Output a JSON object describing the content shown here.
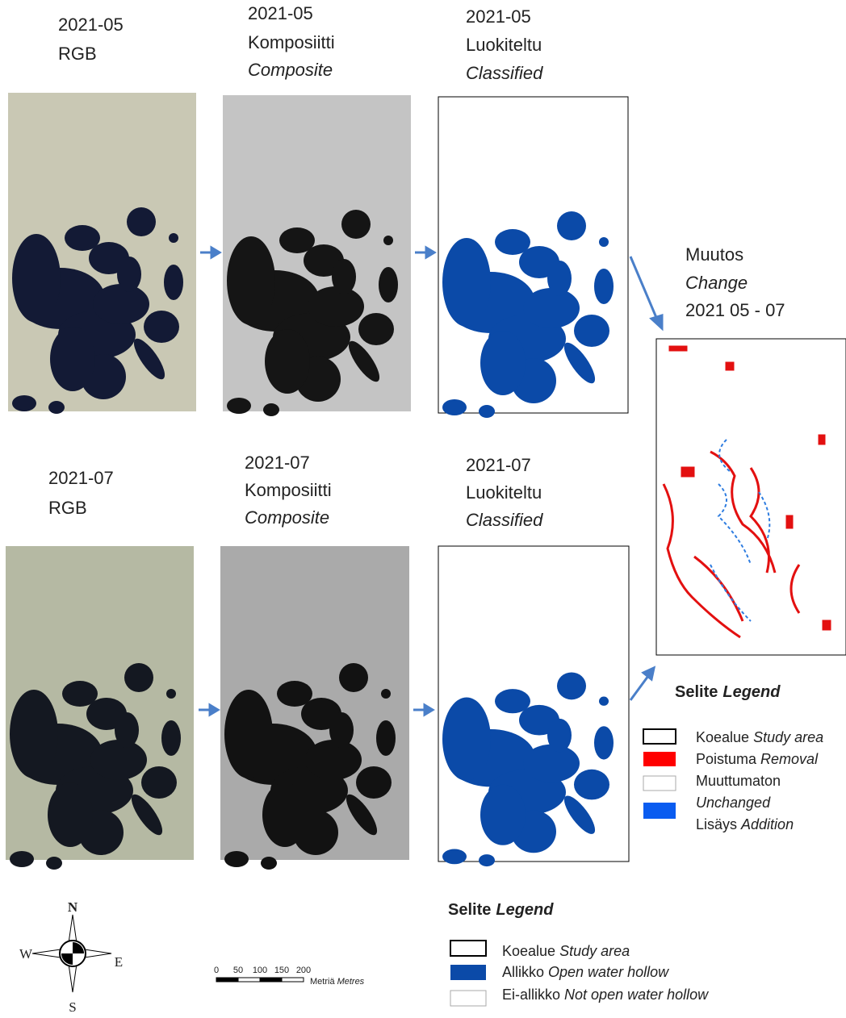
{
  "rows": [
    {
      "rgb": {
        "date": "2021-05",
        "label": "RGB"
      },
      "composite": {
        "date": "2021-05",
        "label_fi": "Komposiitti",
        "label_en": "Composite"
      },
      "classified": {
        "date": "2021-05",
        "label_fi": "Luokiteltu",
        "label_en": "Classified"
      }
    },
    {
      "rgb": {
        "date": "2021-07",
        "label": "RGB"
      },
      "composite": {
        "date": "2021-07",
        "label_fi": "Komposiitti",
        "label_en": "Composite"
      },
      "classified": {
        "date": "2021-07",
        "label_fi": "Luokiteltu",
        "label_en": "Classified"
      }
    }
  ],
  "change": {
    "title_fi": "Muutos",
    "title_en": "Change",
    "period": "2021 05 - 07"
  },
  "change_legend": {
    "title_fi": "Selite",
    "title_en": "Legend",
    "items": [
      {
        "fi": "Koealue",
        "en": "Study area"
      },
      {
        "fi": "Poistuma",
        "en": "Removal"
      },
      {
        "fi": "Muuttumaton",
        "en": "Unchanged"
      },
      {
        "fi": "Lisäys",
        "en": "Addition"
      }
    ]
  },
  "class_legend": {
    "title_fi": "Selite",
    "title_en": "Legend",
    "items": [
      {
        "fi": "Koealue",
        "en": "Study area"
      },
      {
        "fi": "Allikko",
        "en": "Open water hollow"
      },
      {
        "fi": "Ei-allikko",
        "en": "Not open water hollow"
      }
    ]
  },
  "compass": {
    "n": "N",
    "e": "E",
    "s": "S",
    "w": "W"
  },
  "scale_bar": {
    "ticks": [
      "0",
      "50",
      "100",
      "150",
      "200"
    ],
    "unit_fi": "Metriä",
    "unit_en": "Metres"
  }
}
